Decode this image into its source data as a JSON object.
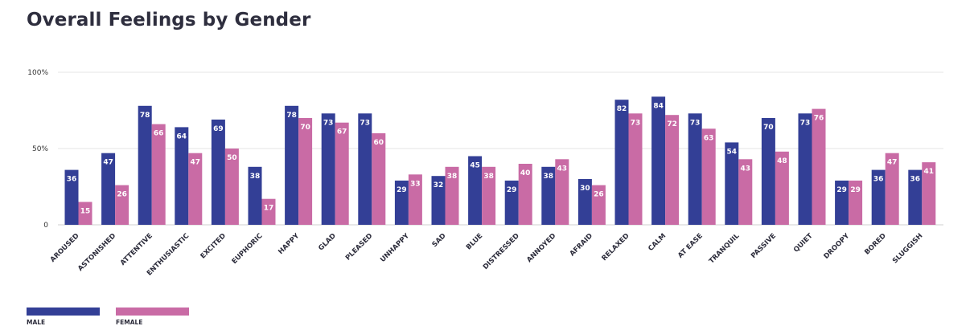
{
  "chart_data": {
    "type": "bar",
    "title": "Overall Feelings by Gender",
    "categories": [
      "AROUSED",
      "ASTONISHED",
      "ATTENTIVE",
      "ENTHUSIASTIC",
      "EXCITED",
      "EUPHORIC",
      "HAPPY",
      "GLAD",
      "PLEASED",
      "UNHAPPY",
      "SAD",
      "BLUE",
      "DISTRESSED",
      "ANNOYED",
      "AFRAID",
      "RELAXED",
      "CALM",
      "AT EASE",
      "TRANQUIL",
      "PASSIVE",
      "QUIET",
      "DROOPY",
      "BORED",
      "SLUGGISH"
    ],
    "series": [
      {
        "name": "MALE",
        "color": "#333f96",
        "values": [
          36,
          47,
          78,
          64,
          69,
          38,
          78,
          73,
          73,
          29,
          32,
          45,
          29,
          38,
          30,
          82,
          84,
          73,
          54,
          70,
          73,
          29,
          36,
          36
        ]
      },
      {
        "name": "FEMALE",
        "color": "#c96ba5",
        "values": [
          15,
          26,
          66,
          47,
          50,
          17,
          70,
          67,
          60,
          33,
          38,
          38,
          40,
          43,
          26,
          73,
          72,
          63,
          43,
          48,
          76,
          29,
          47,
          41
        ]
      }
    ],
    "ylim": [
      0,
      100
    ],
    "yticks": [
      {
        "value": 0,
        "label": "0"
      },
      {
        "value": 50,
        "label": "50%"
      },
      {
        "value": 100,
        "label": "100%"
      }
    ],
    "grid": true,
    "legend_position": "bottom-left"
  }
}
